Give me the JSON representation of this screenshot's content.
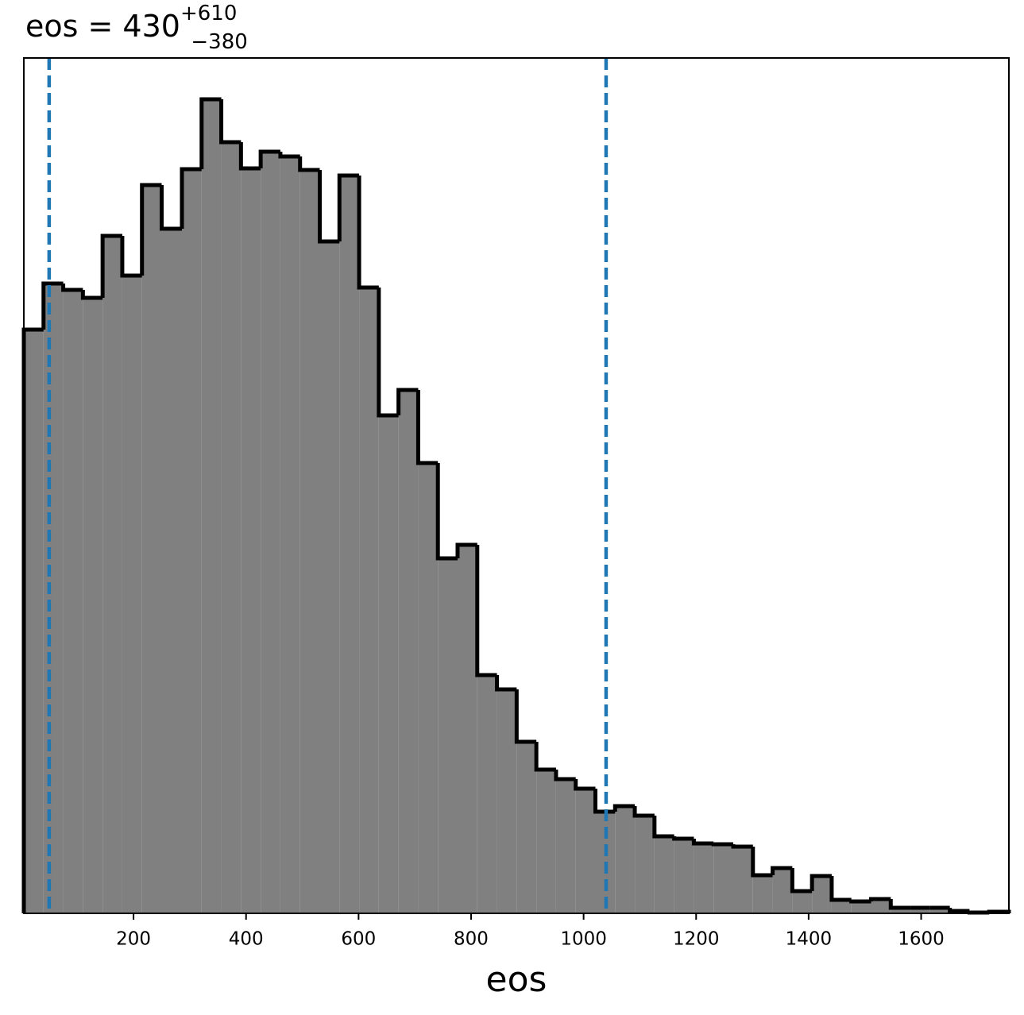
{
  "chart_data": {
    "type": "histogram",
    "title": "eos = 430",
    "title_sup": "+610",
    "title_sub": "−380",
    "xlabel": "eos",
    "bins": [
      5,
      40,
      75,
      110,
      145,
      180,
      215,
      250,
      286,
      321,
      356,
      391,
      426,
      461,
      496,
      531,
      566,
      601,
      636,
      671,
      706,
      741,
      776,
      811,
      846,
      881,
      916,
      951,
      986,
      1021,
      1056,
      1091,
      1126,
      1161,
      1196,
      1231,
      1266,
      1301,
      1336,
      1371,
      1406,
      1441,
      1476,
      1511,
      1546,
      1581,
      1616,
      1651,
      1686,
      1721,
      1756
    ],
    "values": [
      735,
      793,
      785,
      775,
      853,
      803,
      917,
      862,
      937,
      1025,
      971,
      938,
      959,
      953,
      936,
      846,
      929,
      788,
      627,
      659,
      567,
      447,
      464,
      300,
      282,
      216,
      181,
      169,
      157,
      128,
      135,
      123,
      97,
      94,
      88,
      87,
      84,
      48,
      57,
      28,
      47,
      17,
      15,
      18,
      7,
      7,
      7,
      3,
      1,
      2
    ],
    "color": "#808080",
    "edgecolor": "#000000",
    "vlines": [
      50,
      1040
    ],
    "vline_color": "#1f77b4",
    "xlim": [
      5,
      1756
    ],
    "ylim": [
      0,
      1077
    ],
    "xticks": [
      200,
      400,
      600,
      800,
      1000,
      1200,
      1400,
      1600
    ]
  }
}
